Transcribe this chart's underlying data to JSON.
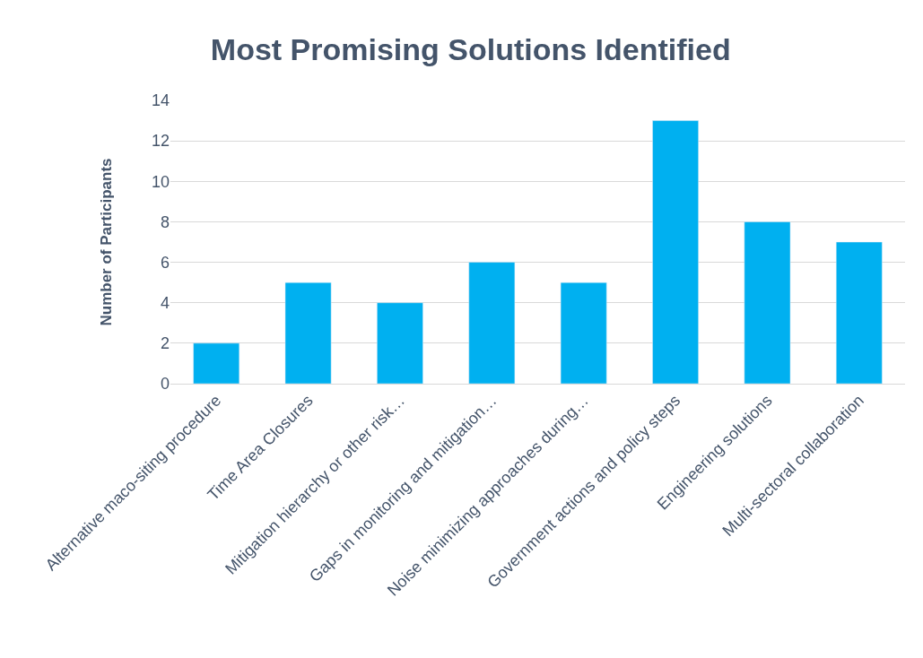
{
  "chart_data": {
    "type": "bar",
    "title": "Most Promising Solutions Identified",
    "ylabel": "Number of Participants",
    "categories": [
      "Alternative maco-siting procedure",
      "Time Area Closures",
      "Mitigation hierarchy or other risk…",
      "Gaps in monitoring and mitigation…",
      "Noise minimizing approaches during…",
      "Government actions and policy steps",
      "Engineering solutions",
      "Multi-sectoral collaboration"
    ],
    "values": [
      2,
      5,
      4,
      6,
      5,
      13,
      8,
      7
    ],
    "color": "#00b0f0",
    "ylim": [
      0,
      14
    ],
    "yticks": [
      0,
      2,
      4,
      6,
      8,
      10,
      12,
      14
    ],
    "grid": "y"
  }
}
